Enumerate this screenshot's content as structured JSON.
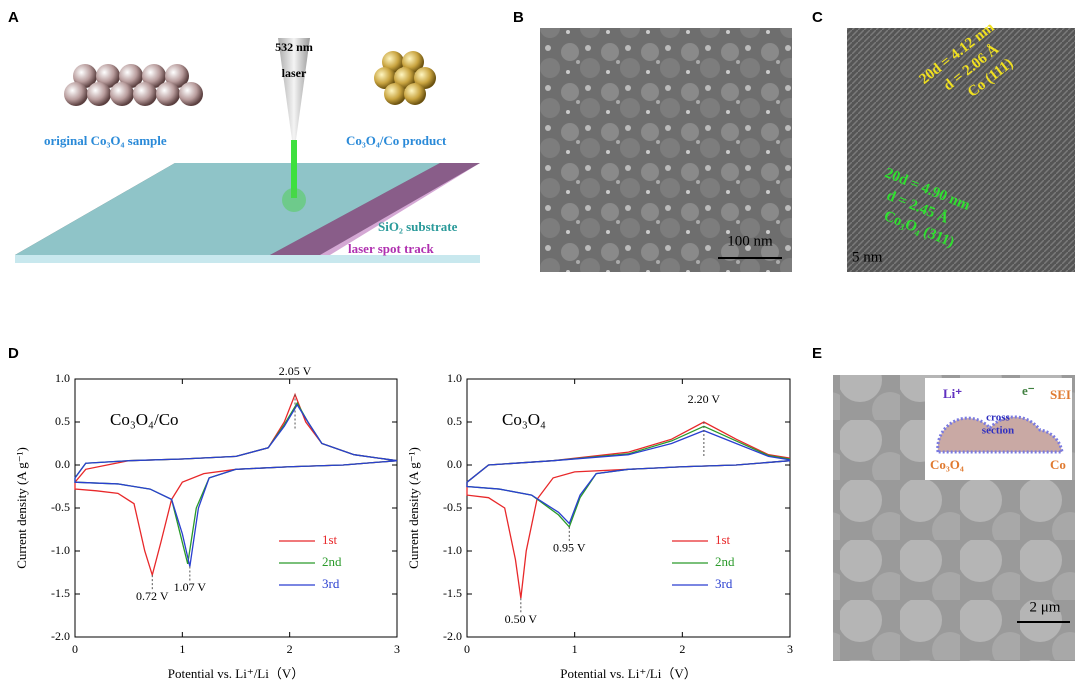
{
  "panels": {
    "a": {
      "label": "A",
      "laser_wavelength": "532 nm",
      "laser": "laser",
      "original": "original Co₃O₄ sample",
      "product": "Co₃O₄/Co product",
      "substrate": "SiO₂ substrate",
      "track": "laser spot track"
    },
    "b": {
      "label": "B",
      "scale": "100 nm"
    },
    "c": {
      "label": "C",
      "co_spacing": "20d = 4.12 nm",
      "co_d": "d = 2.06 Å",
      "co_plane": "Co (111)",
      "oxide_spacing": "20d = 4.90 nm",
      "oxide_d": "d = 2.45 Å",
      "oxide_plane": "Co₃O₄ (311)",
      "scale": "5 nm"
    },
    "d": {
      "label": "D"
    },
    "e": {
      "label": "E",
      "li": "Li⁺",
      "electron": "e⁻",
      "sei": "SEI",
      "cross": "cross",
      "section": "section",
      "oxide": "Co₃O₄",
      "co": "Co",
      "scale": "2 μm"
    }
  },
  "chart_data": [
    {
      "type": "line",
      "title": "Co₃O₄/Co",
      "x_label": "Potential vs. Li⁺/Li（V）",
      "y_label": "Current density (A g⁻¹)",
      "xlim": [
        0,
        3
      ],
      "xticks": [
        0,
        1,
        2,
        3
      ],
      "ylim": [
        -2,
        1
      ],
      "yticks": [
        {
          "value": -2,
          "label": "-2.0"
        },
        {
          "value": -1.5,
          "label": "-1.5"
        },
        {
          "value": -1,
          "label": "-1.0"
        },
        {
          "value": -0.5,
          "label": "-0.5"
        },
        {
          "value": 0,
          "label": "0.0"
        },
        {
          "value": 0.5,
          "label": "0.5"
        },
        {
          "value": 1,
          "label": "1.0"
        }
      ],
      "series": [
        {
          "name": "1st",
          "color": "#e8282a",
          "x": [
            3,
            2.5,
            2,
            1.5,
            1.2,
            1,
            0.9,
            0.8,
            0.72,
            0.65,
            0.55,
            0.4,
            0.2,
            0,
            0,
            0.1,
            0.5,
            1,
            1.5,
            1.8,
            1.95,
            2.05,
            2.15,
            2.3,
            2.6,
            3
          ],
          "values": [
            0.05,
            0,
            -0.02,
            -0.05,
            -0.1,
            -0.2,
            -0.4,
            -0.9,
            -1.28,
            -1,
            -0.45,
            -0.33,
            -0.3,
            -0.28,
            -0.2,
            -0.05,
            0.05,
            0.07,
            0.1,
            0.2,
            0.5,
            0.82,
            0.5,
            0.25,
            0.12,
            0.05
          ]
        },
        {
          "name": "2nd",
          "color": "#2a9a2a",
          "x": [
            3,
            2.5,
            2,
            1.5,
            1.25,
            1.13,
            1.05,
            0.98,
            0.9,
            0.7,
            0.4,
            0,
            0,
            0.1,
            0.5,
            1,
            1.5,
            1.8,
            1.95,
            2.07,
            2.17,
            2.3,
            2.6,
            3
          ],
          "values": [
            0.05,
            0,
            -0.02,
            -0.05,
            -0.15,
            -0.5,
            -1.15,
            -0.8,
            -0.4,
            -0.28,
            -0.22,
            -0.2,
            -0.15,
            0.02,
            0.05,
            0.07,
            0.1,
            0.2,
            0.47,
            0.72,
            0.5,
            0.25,
            0.12,
            0.05
          ]
        },
        {
          "name": "3rd",
          "color": "#2a3fd0",
          "x": [
            3,
            2.5,
            2,
            1.5,
            1.25,
            1.15,
            1.07,
            1,
            0.9,
            0.7,
            0.4,
            0,
            0,
            0.1,
            0.5,
            1,
            1.5,
            1.8,
            1.95,
            2.07,
            2.17,
            2.3,
            2.6,
            3
          ],
          "values": [
            0.05,
            0,
            -0.02,
            -0.05,
            -0.15,
            -0.5,
            -1.18,
            -0.8,
            -0.4,
            -0.28,
            -0.22,
            -0.2,
            -0.15,
            0.02,
            0.05,
            0.07,
            0.1,
            0.2,
            0.45,
            0.7,
            0.5,
            0.25,
            0.12,
            0.05
          ]
        }
      ],
      "annotations": [
        {
          "text": "0.72 V",
          "x": 0.72,
          "y": -1.28
        },
        {
          "text": "1.07 V",
          "x": 1.07,
          "y": -1.18
        },
        {
          "text": "2.05 V",
          "x": 2.05,
          "y": 0.82
        }
      ]
    },
    {
      "type": "line",
      "title": "Co₃O₄",
      "x_label": "Potential vs. Li⁺/Li（V）",
      "y_label": "Current density (A g⁻¹)",
      "xlim": [
        0,
        3
      ],
      "xticks": [
        0,
        1,
        2,
        3
      ],
      "ylim": [
        -2,
        1
      ],
      "yticks": [
        {
          "value": -2,
          "label": "-2.0"
        },
        {
          "value": -1.5,
          "label": "-1.5"
        },
        {
          "value": -1,
          "label": "-1.0"
        },
        {
          "value": -0.5,
          "label": "-0.5"
        },
        {
          "value": 0,
          "label": "0.0"
        },
        {
          "value": 0.5,
          "label": "0.5"
        },
        {
          "value": 1,
          "label": "1.0"
        }
      ],
      "series": [
        {
          "name": "1st",
          "color": "#e8282a",
          "x": [
            3,
            2.5,
            2,
            1.5,
            1,
            0.8,
            0.65,
            0.55,
            0.5,
            0.45,
            0.35,
            0.2,
            0,
            0,
            0.2,
            0.8,
            1.5,
            1.9,
            2.2,
            2.5,
            2.8,
            3
          ],
          "values": [
            0.05,
            0,
            -0.02,
            -0.05,
            -0.08,
            -0.15,
            -0.4,
            -1,
            -1.55,
            -1.1,
            -0.5,
            -0.38,
            -0.35,
            -0.2,
            0,
            0.05,
            0.15,
            0.3,
            0.5,
            0.3,
            0.12,
            0.08
          ]
        },
        {
          "name": "2nd",
          "color": "#2a9a2a",
          "x": [
            3,
            2.5,
            2,
            1.5,
            1.2,
            1.05,
            0.95,
            0.85,
            0.6,
            0.3,
            0,
            0,
            0.2,
            0.8,
            1.5,
            1.9,
            2.2,
            2.5,
            2.8,
            3
          ],
          "values": [
            0.05,
            0,
            -0.02,
            -0.05,
            -0.1,
            -0.38,
            -0.72,
            -0.58,
            -0.35,
            -0.28,
            -0.25,
            -0.2,
            0,
            0.05,
            0.13,
            0.28,
            0.45,
            0.28,
            0.11,
            0.07
          ]
        },
        {
          "name": "3rd",
          "color": "#2a3fd0",
          "x": [
            3,
            2.5,
            2,
            1.5,
            1.2,
            1.05,
            0.95,
            0.85,
            0.6,
            0.3,
            0,
            0,
            0.2,
            0.8,
            1.5,
            1.9,
            2.2,
            2.5,
            2.8,
            3
          ],
          "values": [
            0.05,
            0,
            -0.02,
            -0.05,
            -0.1,
            -0.35,
            -0.68,
            -0.55,
            -0.35,
            -0.28,
            -0.25,
            -0.2,
            0,
            0.05,
            0.12,
            0.25,
            0.4,
            0.25,
            0.1,
            0.06
          ]
        }
      ],
      "annotations": [
        {
          "text": "0.50 V",
          "x": 0.5,
          "y": -1.55
        },
        {
          "text": "0.95 V",
          "x": 0.95,
          "y": -0.72
        },
        {
          "text": "2.20 V",
          "x": 2.2,
          "y": 0.5
        }
      ]
    }
  ]
}
